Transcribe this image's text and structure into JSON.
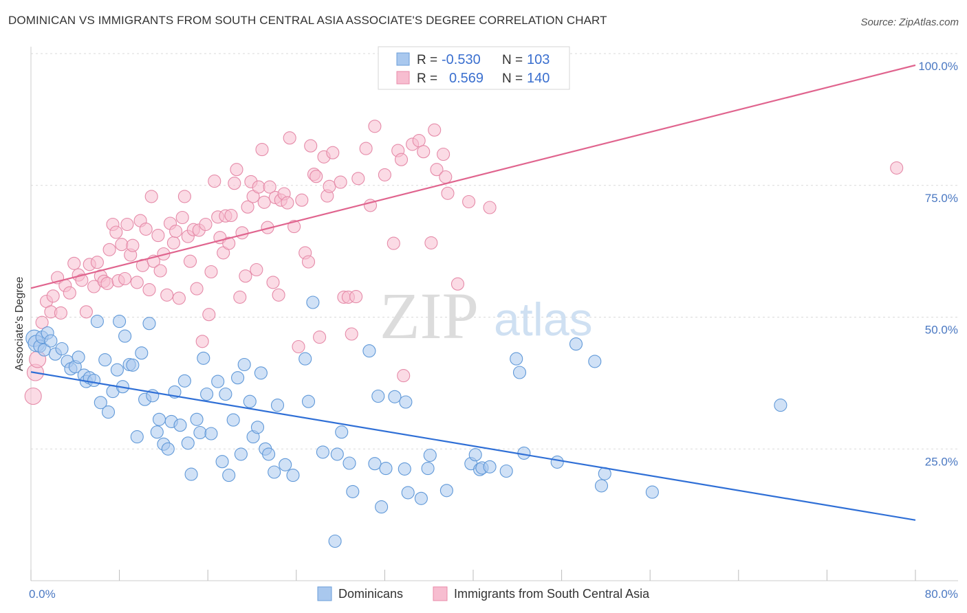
{
  "title": "DOMINICAN VS IMMIGRANTS FROM SOUTH CENTRAL ASIA ASSOCIATE'S DEGREE CORRELATION CHART",
  "source": "Source: ZipAtlas.com",
  "watermark": {
    "zip": "ZIP",
    "atlas": "atlas"
  },
  "legend": {
    "r_label": "R =",
    "n_label": "N =",
    "rows": [
      {
        "r": "-0.530",
        "n": "103",
        "color": "#a9c8ee",
        "stroke": "#6a9ed8"
      },
      {
        "r": "0.569",
        "n": "140",
        "color": "#f7bdd0",
        "stroke": "#e88aa9"
      }
    ]
  },
  "bottom_legend": [
    "Dominicans",
    "Immigrants from South Central Asia"
  ],
  "colors": {
    "blue_line": "#2f6fd6",
    "pink_line": "#e0648e",
    "grid": "#d9d9d9"
  },
  "chart_data": {
    "type": "scatter",
    "xlabel": "",
    "ylabel": "Associate's Degree",
    "xlim": [
      0,
      80
    ],
    "ylim": [
      0,
      100
    ],
    "x_tick_labels": [
      "0.0%",
      "80.0%"
    ],
    "y_ticks": [
      25,
      50,
      75,
      100
    ],
    "y_tick_labels": [
      "25.0%",
      "50.0%",
      "75.0%",
      "100.0%"
    ],
    "grid": true,
    "legend_position": "top-center",
    "series": [
      {
        "name": "Dominicans",
        "trend": [
          [
            0,
            39.6
          ],
          [
            80,
            11.5
          ]
        ],
        "points": [
          [
            0.3,
            46
          ],
          [
            0.5,
            45
          ],
          [
            0.8,
            44.5
          ],
          [
            1,
            46.2
          ],
          [
            1.2,
            43.8
          ],
          [
            1.5,
            47
          ],
          [
            1.8,
            45.5
          ],
          [
            2.2,
            43
          ],
          [
            2.8,
            44
          ],
          [
            3.3,
            41.6
          ],
          [
            3.6,
            40.2
          ],
          [
            4,
            40.6
          ],
          [
            4.3,
            42.4
          ],
          [
            4.8,
            39
          ],
          [
            5,
            37.8
          ],
          [
            5.3,
            38.5
          ],
          [
            5.7,
            38
          ],
          [
            6,
            49.2
          ],
          [
            6.3,
            33.8
          ],
          [
            6.7,
            41.9
          ],
          [
            7,
            32
          ],
          [
            7.4,
            35.9
          ],
          [
            7.8,
            40
          ],
          [
            8,
            49.2
          ],
          [
            8.3,
            36.8
          ],
          [
            8.5,
            46.4
          ],
          [
            8.9,
            41
          ],
          [
            9.2,
            40.9
          ],
          [
            9.6,
            27.3
          ],
          [
            10,
            43.2
          ],
          [
            10.3,
            34.4
          ],
          [
            10.7,
            48.8
          ],
          [
            11,
            35.1
          ],
          [
            11.4,
            28.2
          ],
          [
            11.6,
            30.6
          ],
          [
            12,
            25.9
          ],
          [
            12.4,
            25
          ],
          [
            12.7,
            30.2
          ],
          [
            13,
            35.8
          ],
          [
            13.5,
            29.5
          ],
          [
            13.9,
            37.9
          ],
          [
            14.2,
            26.1
          ],
          [
            14.5,
            20.2
          ],
          [
            15,
            30.6
          ],
          [
            15.3,
            28.1
          ],
          [
            15.6,
            42.2
          ],
          [
            15.9,
            35.4
          ],
          [
            16.3,
            27.9
          ],
          [
            16.9,
            37.8
          ],
          [
            17.3,
            22.6
          ],
          [
            17.6,
            35.4
          ],
          [
            17.9,
            20
          ],
          [
            18.3,
            30.5
          ],
          [
            18.7,
            38.5
          ],
          [
            19,
            24
          ],
          [
            19.3,
            41
          ],
          [
            19.8,
            34
          ],
          [
            20.1,
            27.3
          ],
          [
            20.5,
            29.1
          ],
          [
            20.8,
            39.4
          ],
          [
            21.2,
            25
          ],
          [
            21.5,
            24
          ],
          [
            22,
            20.6
          ],
          [
            22.3,
            33.3
          ],
          [
            23,
            22
          ],
          [
            23.7,
            20
          ],
          [
            24.8,
            42.1
          ],
          [
            25.1,
            34
          ],
          [
            25.5,
            52.8
          ],
          [
            26.4,
            24.4
          ],
          [
            27.5,
            7.5
          ],
          [
            27.7,
            24
          ],
          [
            28.1,
            28.2
          ],
          [
            28.8,
            22.3
          ],
          [
            29.1,
            16.9
          ],
          [
            30.6,
            43.6
          ],
          [
            31.1,
            22.2
          ],
          [
            31.4,
            35
          ],
          [
            31.7,
            14
          ],
          [
            32.1,
            21.3
          ],
          [
            32.9,
            34.9
          ],
          [
            33.8,
            21.2
          ],
          [
            33.9,
            33.9
          ],
          [
            34.1,
            16.7
          ],
          [
            35.3,
            15.6
          ],
          [
            35.9,
            21.3
          ],
          [
            36.1,
            23.8
          ],
          [
            37.6,
            17.1
          ],
          [
            39.8,
            22.2
          ],
          [
            40.2,
            23.9
          ],
          [
            40.6,
            21.1
          ],
          [
            40.8,
            21.4
          ],
          [
            41.5,
            21.6
          ],
          [
            43,
            20.8
          ],
          [
            43.9,
            42.1
          ],
          [
            44.2,
            39.5
          ],
          [
            44.6,
            24.2
          ],
          [
            47.6,
            22.5
          ],
          [
            49.3,
            44.9
          ],
          [
            51,
            41.6
          ],
          [
            51.6,
            18
          ],
          [
            51.9,
            20.3
          ],
          [
            56.2,
            16.8
          ],
          [
            67.8,
            33.3
          ]
        ]
      },
      {
        "name": "Immigrants from South Central Asia",
        "trend": [
          [
            0,
            55.5
          ],
          [
            80,
            97.8
          ]
        ],
        "points": [
          [
            0.2,
            35
          ],
          [
            0.4,
            39.5
          ],
          [
            0.6,
            42
          ],
          [
            1,
            49
          ],
          [
            1.4,
            53
          ],
          [
            1.8,
            51
          ],
          [
            2,
            54
          ],
          [
            2.4,
            57.5
          ],
          [
            2.7,
            50.8
          ],
          [
            3.1,
            56
          ],
          [
            3.5,
            54.6
          ],
          [
            3.9,
            60.2
          ],
          [
            4.3,
            58
          ],
          [
            4.6,
            57
          ],
          [
            5,
            51
          ],
          [
            5.3,
            60
          ],
          [
            5.7,
            55.8
          ],
          [
            6,
            60.4
          ],
          [
            6.3,
            57.8
          ],
          [
            6.6,
            56.8
          ],
          [
            6.9,
            56.4
          ],
          [
            7.1,
            62.8
          ],
          [
            7.4,
            67.6
          ],
          [
            7.7,
            66.1
          ],
          [
            7.9,
            56.9
          ],
          [
            8.2,
            63.8
          ],
          [
            8.5,
            57.3
          ],
          [
            8.7,
            67.6
          ],
          [
            9,
            61.8
          ],
          [
            9.2,
            63.6
          ],
          [
            9.6,
            56.6
          ],
          [
            9.9,
            68.3
          ],
          [
            10.1,
            59.8
          ],
          [
            10.4,
            66.7
          ],
          [
            10.7,
            55.2
          ],
          [
            10.9,
            72.9
          ],
          [
            11.1,
            60.6
          ],
          [
            11.5,
            65.5
          ],
          [
            11.7,
            58.8
          ],
          [
            12,
            62
          ],
          [
            12.3,
            54.2
          ],
          [
            12.6,
            67.8
          ],
          [
            12.9,
            64.1
          ],
          [
            13.1,
            66.3
          ],
          [
            13.4,
            53.6
          ],
          [
            13.7,
            68.9
          ],
          [
            13.9,
            72.9
          ],
          [
            14.2,
            65.3
          ],
          [
            14.4,
            60.6
          ],
          [
            14.7,
            66.6
          ],
          [
            15,
            55.4
          ],
          [
            15.2,
            66.5
          ],
          [
            15.5,
            45.4
          ],
          [
            15.8,
            67.6
          ],
          [
            16.1,
            50.5
          ],
          [
            16.3,
            58.6
          ],
          [
            16.6,
            75.8
          ],
          [
            16.9,
            69
          ],
          [
            17.1,
            65.1
          ],
          [
            17.4,
            62.2
          ],
          [
            17.6,
            69.2
          ],
          [
            17.9,
            64
          ],
          [
            18.1,
            69.3
          ],
          [
            18.4,
            75.4
          ],
          [
            18.6,
            78
          ],
          [
            18.9,
            53.8
          ],
          [
            19.1,
            66
          ],
          [
            19.4,
            57.8
          ],
          [
            19.6,
            70.9
          ],
          [
            19.9,
            75.7
          ],
          [
            20.1,
            72.9
          ],
          [
            20.4,
            59
          ],
          [
            20.6,
            74.7
          ],
          [
            20.9,
            81.8
          ],
          [
            21.1,
            71.8
          ],
          [
            21.4,
            67
          ],
          [
            21.6,
            74.7
          ],
          [
            21.9,
            56.6
          ],
          [
            22.1,
            72.7
          ],
          [
            22.4,
            54.2
          ],
          [
            22.6,
            72.2
          ],
          [
            22.9,
            73.4
          ],
          [
            23.2,
            71.7
          ],
          [
            23.4,
            84
          ],
          [
            23.8,
            67.2
          ],
          [
            24.2,
            44.4
          ],
          [
            24.5,
            72.2
          ],
          [
            24.8,
            62.2
          ],
          [
            25.1,
            60.5
          ],
          [
            25.3,
            82.5
          ],
          [
            25.6,
            77.1
          ],
          [
            25.8,
            76.7
          ],
          [
            26.1,
            46.2
          ],
          [
            26.5,
            80.4
          ],
          [
            26.8,
            73
          ],
          [
            27,
            74.8
          ],
          [
            27.3,
            81.2
          ],
          [
            28,
            75.6
          ],
          [
            28.3,
            53.8
          ],
          [
            28.7,
            53.8
          ],
          [
            29,
            46.8
          ],
          [
            29.4,
            53.9
          ],
          [
            29.6,
            76.3
          ],
          [
            30.3,
            82
          ],
          [
            30.7,
            71.2
          ],
          [
            31.1,
            86.2
          ],
          [
            32,
            77
          ],
          [
            32.8,
            64
          ],
          [
            33.2,
            81.6
          ],
          [
            33.5,
            79.9
          ],
          [
            33.7,
            38.9
          ],
          [
            34.5,
            82.8
          ],
          [
            35.1,
            83.5
          ],
          [
            35.5,
            81.4
          ],
          [
            36.2,
            64.1
          ],
          [
            36.5,
            85.5
          ],
          [
            36.7,
            78
          ],
          [
            37.3,
            80.9
          ],
          [
            37.5,
            76.6
          ],
          [
            37.7,
            73.5
          ],
          [
            38.6,
            56.3
          ],
          [
            39.6,
            71.9
          ],
          [
            41.5,
            70.8
          ],
          [
            78.3,
            78.3
          ]
        ]
      }
    ]
  }
}
